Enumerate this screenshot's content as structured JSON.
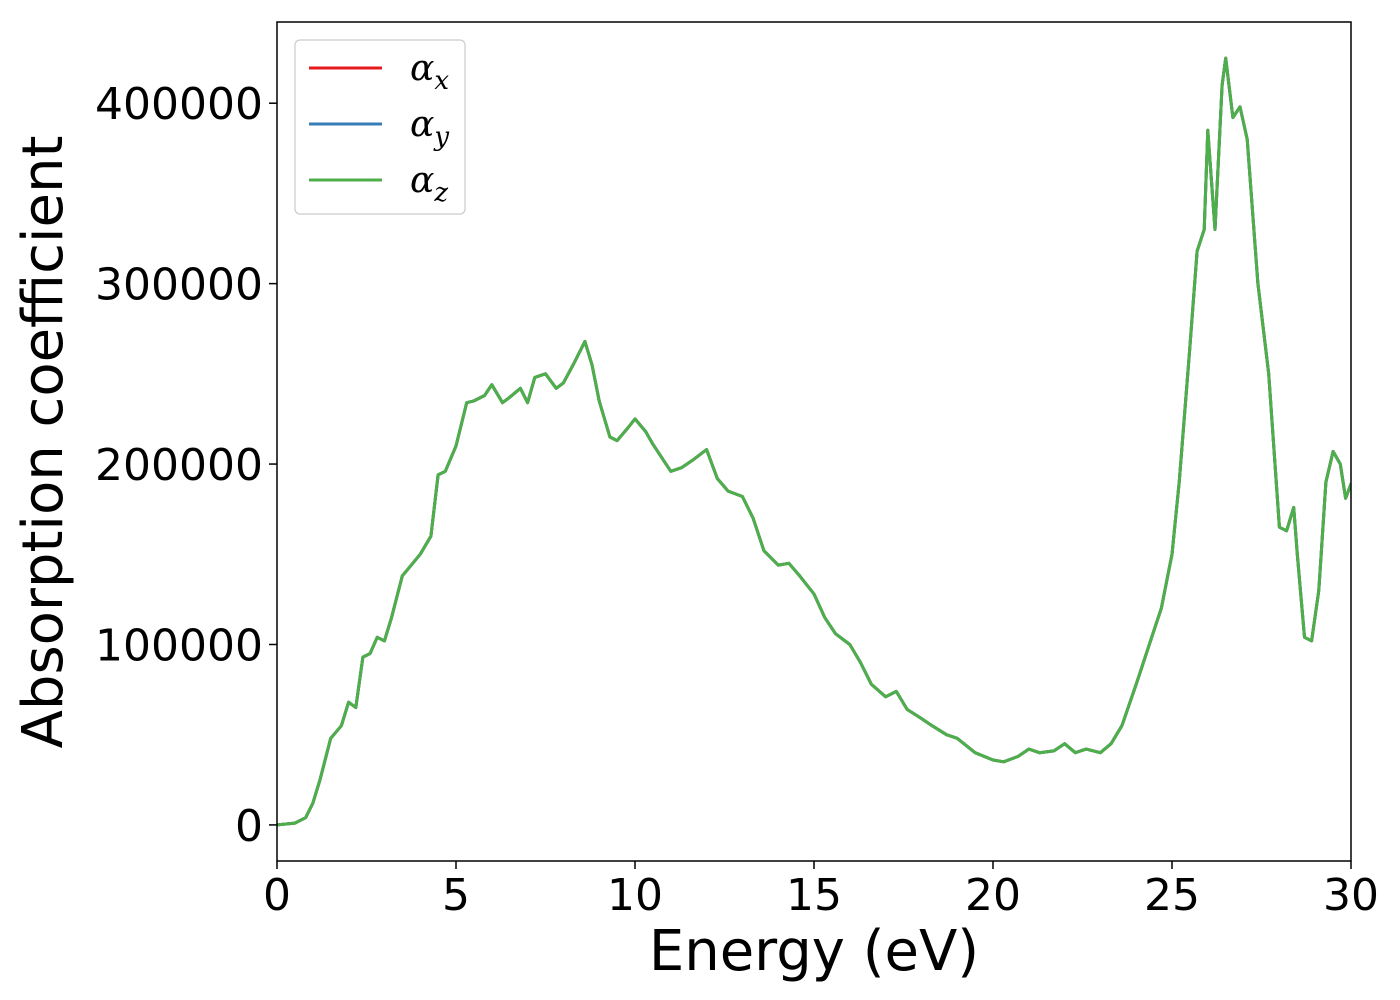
{
  "chart_data": {
    "type": "line",
    "title": "",
    "xlabel": "Energy (eV)",
    "ylabel": "Absorption coefficient",
    "xlim": [
      0,
      30
    ],
    "ylim": [
      -20000,
      445000
    ],
    "xticks": [
      0,
      5,
      10,
      15,
      20,
      25,
      30
    ],
    "yticks": [
      0,
      100000,
      200000,
      300000,
      400000
    ],
    "grid": false,
    "legend": {
      "placement": "top-left"
    },
    "colors": {
      "alpha_x": "#e41a1c",
      "alpha_y": "#377eb8",
      "alpha_z": "#4daf4a"
    },
    "x": [
      0,
      0.5,
      0.8,
      1.0,
      1.2,
      1.5,
      1.8,
      2.0,
      2.2,
      2.4,
      2.6,
      2.8,
      3.0,
      3.2,
      3.5,
      4.0,
      4.3,
      4.5,
      4.7,
      5.0,
      5.3,
      5.5,
      5.8,
      6.0,
      6.3,
      6.5,
      6.8,
      7.0,
      7.2,
      7.5,
      7.8,
      8.0,
      8.3,
      8.6,
      8.8,
      9.0,
      9.3,
      9.5,
      9.8,
      10.0,
      10.3,
      10.5,
      10.8,
      11.0,
      11.3,
      11.6,
      12.0,
      12.3,
      12.6,
      13.0,
      13.3,
      13.6,
      14.0,
      14.3,
      14.6,
      15.0,
      15.3,
      15.6,
      16.0,
      16.3,
      16.6,
      17.0,
      17.3,
      17.6,
      18.0,
      18.3,
      18.7,
      19.0,
      19.5,
      20.0,
      20.3,
      20.7,
      21.0,
      21.3,
      21.7,
      22.0,
      22.3,
      22.6,
      23.0,
      23.3,
      23.6,
      24.0,
      24.2,
      24.5,
      24.7,
      25.0,
      25.2,
      25.5,
      25.7,
      25.9,
      26.0,
      26.2,
      26.4,
      26.5,
      26.7,
      26.9,
      27.1,
      27.4,
      27.7,
      28.0,
      28.2,
      28.4,
      28.5,
      28.7,
      28.9,
      29.1,
      29.3,
      29.5,
      29.7,
      29.85,
      30.0
    ],
    "series": [
      {
        "name": "α_x",
        "values": [
          0,
          1000,
          4000,
          12000,
          25000,
          48000,
          55000,
          68000,
          65000,
          93000,
          95000,
          104000,
          102000,
          115000,
          138000,
          150000,
          160000,
          194000,
          196000,
          210000,
          234000,
          235000,
          238000,
          244000,
          234000,
          237000,
          242000,
          234000,
          248000,
          250000,
          242000,
          245000,
          256000,
          268000,
          255000,
          235000,
          215000,
          213000,
          220000,
          225000,
          218000,
          211000,
          202000,
          196000,
          198000,
          202000,
          208000,
          192000,
          185000,
          182000,
          170000,
          152000,
          144000,
          145000,
          138000,
          128000,
          115000,
          106000,
          100000,
          90000,
          78000,
          71000,
          74000,
          64000,
          59000,
          55000,
          50000,
          48000,
          40000,
          36000,
          35000,
          38000,
          42000,
          40000,
          41000,
          45000,
          40000,
          42000,
          40000,
          45000,
          55000,
          78000,
          90000,
          108000,
          120000,
          150000,
          190000,
          265000,
          318000,
          330000,
          385000,
          330000,
          410000,
          425000,
          392000,
          398000,
          380000,
          300000,
          250000,
          165000,
          163000,
          176000,
          150000,
          104000,
          102000,
          130000,
          190000,
          207000,
          200000,
          181000,
          189000
        ]
      },
      {
        "name": "α_y",
        "values": [
          0,
          1000,
          4000,
          12000,
          25000,
          48000,
          55000,
          68000,
          65000,
          93000,
          95000,
          104000,
          102000,
          115000,
          138000,
          150000,
          160000,
          194000,
          196000,
          210000,
          234000,
          235000,
          238000,
          244000,
          234000,
          237000,
          242000,
          234000,
          248000,
          250000,
          242000,
          245000,
          256000,
          268000,
          255000,
          235000,
          215000,
          213000,
          220000,
          225000,
          218000,
          211000,
          202000,
          196000,
          198000,
          202000,
          208000,
          192000,
          185000,
          182000,
          170000,
          152000,
          144000,
          145000,
          138000,
          128000,
          115000,
          106000,
          100000,
          90000,
          78000,
          71000,
          74000,
          64000,
          59000,
          55000,
          50000,
          48000,
          40000,
          36000,
          35000,
          38000,
          42000,
          40000,
          41000,
          45000,
          40000,
          42000,
          40000,
          45000,
          55000,
          78000,
          90000,
          108000,
          120000,
          150000,
          190000,
          265000,
          318000,
          330000,
          385000,
          330000,
          410000,
          425000,
          392000,
          398000,
          380000,
          300000,
          250000,
          165000,
          163000,
          176000,
          150000,
          104000,
          102000,
          130000,
          190000,
          207000,
          200000,
          181000,
          189000
        ]
      },
      {
        "name": "α_z",
        "values": [
          0,
          1000,
          4000,
          12000,
          25000,
          48000,
          55000,
          68000,
          65000,
          93000,
          95000,
          104000,
          102000,
          115000,
          138000,
          150000,
          160000,
          194000,
          196000,
          210000,
          234000,
          235000,
          238000,
          244000,
          234000,
          237000,
          242000,
          234000,
          248000,
          250000,
          242000,
          245000,
          256000,
          268000,
          255000,
          235000,
          215000,
          213000,
          220000,
          225000,
          218000,
          211000,
          202000,
          196000,
          198000,
          202000,
          208000,
          192000,
          185000,
          182000,
          170000,
          152000,
          144000,
          145000,
          138000,
          128000,
          115000,
          106000,
          100000,
          90000,
          78000,
          71000,
          74000,
          64000,
          59000,
          55000,
          50000,
          48000,
          40000,
          36000,
          35000,
          38000,
          42000,
          40000,
          41000,
          45000,
          40000,
          42000,
          40000,
          45000,
          55000,
          78000,
          90000,
          108000,
          120000,
          150000,
          190000,
          265000,
          318000,
          330000,
          385000,
          330000,
          410000,
          425000,
          392000,
          398000,
          380000,
          300000,
          250000,
          165000,
          163000,
          176000,
          150000,
          104000,
          102000,
          130000,
          190000,
          207000,
          200000,
          181000,
          189000
        ]
      }
    ],
    "legend_entries": [
      {
        "base": "α",
        "sub": "x"
      },
      {
        "base": "α",
        "sub": "y"
      },
      {
        "base": "α",
        "sub": "z"
      }
    ]
  }
}
